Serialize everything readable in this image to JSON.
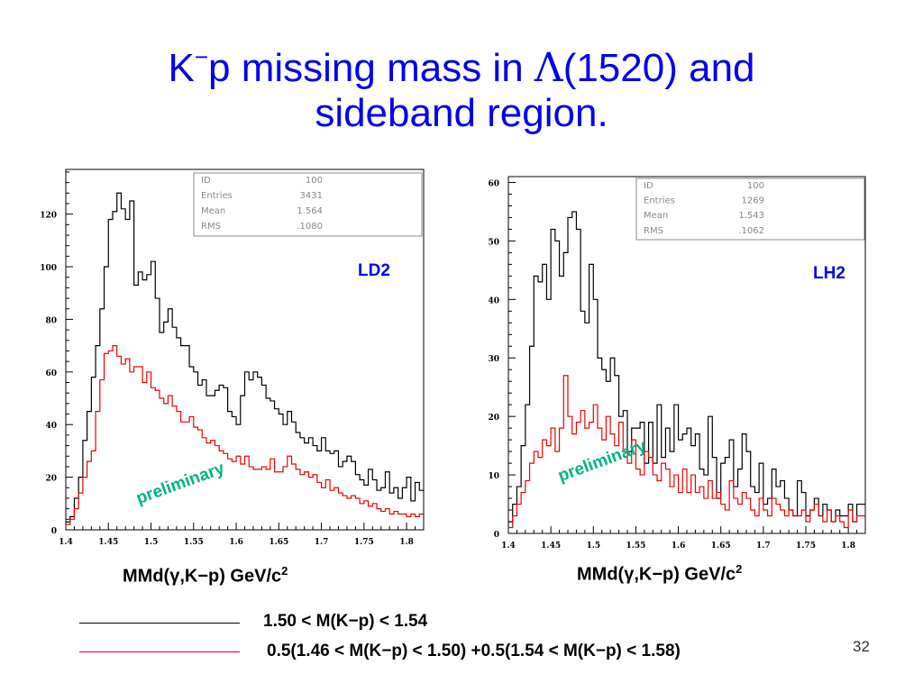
{
  "title": {
    "line1_prefix": "K",
    "line1_sup": "−",
    "line1_mid": "p missing mass in ",
    "lambda": "Λ",
    "line1_suffix": "(1520) and",
    "line2": "sideband region."
  },
  "colors": {
    "title": "#0000ee",
    "signal": "#000000",
    "sideband": "#ee0000",
    "preliminary": "#00b386"
  },
  "chart_data": [
    {
      "type": "bar",
      "style": "step-histogram",
      "target": "LD2",
      "label": "LD2",
      "watermark": "preliminary",
      "xlabel": "MMd(γ,K−p) GeV/c",
      "xlabel_sup": "2",
      "xlim": [
        1.4,
        1.82
      ],
      "ylim": [
        0,
        137
      ],
      "xticks": [
        "1.4",
        "1.45",
        "1.5",
        "1.55",
        "1.6",
        "1.65",
        "1.7",
        "1.75",
        "1.8"
      ],
      "yticks": [
        "0",
        "20",
        "40",
        "60",
        "80",
        "100",
        "120"
      ],
      "stats": [
        {
          "key": "ID",
          "value": "100"
        },
        {
          "key": "Entries",
          "value": "3431"
        },
        {
          "key": "Mean",
          "value": "1.564"
        },
        {
          "key": "RMS",
          "value": ".1080"
        }
      ],
      "bin_start": 1.4,
      "bin_width": 0.005,
      "series": [
        {
          "values": [
            3,
            5,
            12,
            20,
            34,
            45,
            58,
            70,
            84,
            100,
            118,
            121,
            128,
            122,
            118,
            125,
            93,
            98,
            95,
            97,
            102,
            88,
            75,
            79,
            84,
            77,
            73,
            70,
            70,
            62,
            60,
            55,
            57,
            51,
            51,
            53,
            55,
            54,
            45,
            43,
            40,
            51,
            60,
            57,
            60,
            58,
            55,
            50,
            49,
            46,
            44,
            40,
            45,
            41,
            37,
            35,
            33,
            35,
            32,
            30,
            35,
            30,
            29,
            30,
            24,
            26,
            28,
            26,
            21,
            19,
            17,
            23,
            19,
            15,
            16,
            22,
            14,
            16,
            12,
            16,
            20,
            11,
            18,
            15
          ]
        },
        {
          "values": [
            2,
            4,
            8,
            14,
            20,
            26,
            30,
            45,
            57,
            67,
            68,
            70,
            66,
            63,
            65,
            60,
            62,
            62,
            56,
            60,
            54,
            53,
            50,
            48,
            51,
            47,
            45,
            41,
            41,
            43,
            39,
            38,
            35,
            33,
            34,
            32,
            30,
            29,
            27,
            26,
            28,
            25,
            28,
            24,
            23,
            23,
            24,
            23,
            27,
            22,
            22,
            24,
            28,
            25,
            23,
            21,
            22,
            20,
            21,
            18,
            16,
            19,
            15,
            16,
            14,
            13,
            12,
            13,
            12,
            10,
            11,
            9,
            10,
            8,
            7,
            8,
            6,
            7,
            6,
            6,
            5,
            6,
            5,
            6
          ]
        }
      ]
    },
    {
      "type": "bar",
      "style": "step-histogram",
      "target": "LH2",
      "label": "LH2",
      "watermark": "preliminary",
      "xlabel": "MMd(γ,K−p) GeV/c",
      "xlabel_sup": "2",
      "xlim": [
        1.4,
        1.82
      ],
      "ylim": [
        0,
        61
      ],
      "xticks": [
        "1.4",
        "1.45",
        "1.5",
        "1.55",
        "1.6",
        "1.65",
        "1.7",
        "1.75",
        "1.8"
      ],
      "yticks": [
        "0",
        "10",
        "20",
        "30",
        "40",
        "50",
        "60"
      ],
      "stats": [
        {
          "key": "ID",
          "value": "100"
        },
        {
          "key": "Entries",
          "value": "1269"
        },
        {
          "key": "Mean",
          "value": "1.543"
        },
        {
          "key": "RMS",
          "value": ".1062"
        }
      ],
      "bin_start": 1.4,
      "bin_width": 0.005,
      "series": [
        {
          "values": [
            2,
            5,
            8,
            15,
            22,
            32,
            44,
            43,
            46,
            40,
            52,
            50,
            44,
            48,
            54,
            55,
            52,
            38,
            36,
            46,
            40,
            30,
            28,
            26,
            30,
            27,
            20,
            21,
            14,
            18,
            18,
            19,
            12,
            19,
            12,
            22,
            13,
            18,
            14,
            22,
            16,
            17,
            18,
            15,
            17,
            11,
            10,
            20,
            13,
            6,
            12,
            13,
            16,
            8,
            11,
            17,
            14,
            8,
            7,
            12,
            5,
            6,
            11,
            8,
            9,
            6,
            4,
            3,
            9,
            7,
            3,
            4,
            6,
            3,
            5,
            4,
            2,
            4,
            3,
            3,
            5,
            2,
            5,
            5
          ]
        },
        {
          "values": [
            1,
            3,
            5,
            7,
            9,
            12,
            14,
            13,
            16,
            15,
            18,
            14,
            18,
            27,
            20,
            17,
            19,
            21,
            18,
            19,
            22,
            18,
            16,
            20,
            17,
            15,
            19,
            14,
            12,
            16,
            11,
            10,
            14,
            13,
            10,
            9,
            12,
            11,
            8,
            10,
            7,
            11,
            7,
            10,
            7,
            8,
            6,
            9,
            6,
            7,
            5,
            4,
            9,
            6,
            5,
            7,
            6,
            4,
            3,
            6,
            4,
            3,
            6,
            5,
            4,
            3,
            4,
            3,
            3,
            4,
            2,
            4,
            5,
            3,
            2,
            4,
            2,
            3,
            2,
            1,
            4,
            2,
            3,
            3
          ]
        }
      ]
    }
  ],
  "legend": [
    {
      "text": "1.50  < M(K−p) < 1.54",
      "color": "#000000"
    },
    {
      "text": "0.5(1.46  < M(K−p) < 1.50) +0.5(1.54  < M(K−p) < 1.58)",
      "color": "#ee0000"
    }
  ],
  "page_number": "32"
}
